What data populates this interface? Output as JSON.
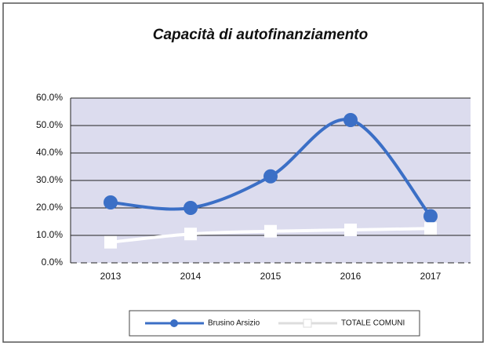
{
  "chart_data": {
    "type": "line",
    "title": "Capacità di autofinanziamento",
    "categories": [
      "2013",
      "2014",
      "2015",
      "2016",
      "2017"
    ],
    "series": [
      {
        "name": "Brusino Arsizio",
        "color": "#3b6fc6",
        "values": [
          22,
          20,
          31.5,
          52,
          17
        ]
      },
      {
        "name": "TOTALE COMUNI",
        "color": "#ffffff",
        "values": [
          7.5,
          10.5,
          11.5,
          12,
          12.5
        ]
      }
    ],
    "ylim": [
      0,
      60
    ],
    "yticks": [
      {
        "value": 0,
        "label": "0.0%"
      },
      {
        "value": 10,
        "label": "10.0%"
      },
      {
        "value": 20,
        "label": "20.0%"
      },
      {
        "value": 30,
        "label": "30.0%"
      },
      {
        "value": 40,
        "label": "40.0%"
      },
      {
        "value": 50,
        "label": "50.0%"
      },
      {
        "value": 60,
        "label": "60.0%"
      }
    ],
    "grid": true,
    "smooth": true,
    "legend": "bottom"
  }
}
